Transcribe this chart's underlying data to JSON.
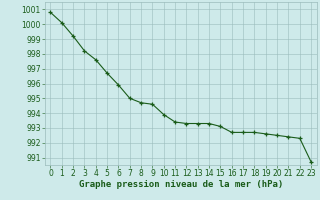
{
  "x": [
    0,
    1,
    2,
    3,
    4,
    5,
    6,
    7,
    8,
    9,
    10,
    11,
    12,
    13,
    14,
    15,
    16,
    17,
    18,
    19,
    20,
    21,
    22,
    23
  ],
  "y": [
    1000.8,
    1000.1,
    999.2,
    998.2,
    997.6,
    996.7,
    995.9,
    995.0,
    994.7,
    994.6,
    993.9,
    993.4,
    993.3,
    993.3,
    993.3,
    993.1,
    992.7,
    992.7,
    992.7,
    992.6,
    992.5,
    992.4,
    992.3,
    990.7
  ],
  "line_color": "#1a5c1a",
  "marker_color": "#1a5c1a",
  "bg_color": "#ceeaea",
  "grid_color": "#9bbcbc",
  "xlabel": "Graphe pression niveau de la mer (hPa)",
  "xlabel_color": "#1a5c1a",
  "ylim": [
    990.5,
    1001.5
  ],
  "yticks": [
    991,
    992,
    993,
    994,
    995,
    996,
    997,
    998,
    999,
    1000,
    1001
  ],
  "xticks": [
    0,
    1,
    2,
    3,
    4,
    5,
    6,
    7,
    8,
    9,
    10,
    11,
    12,
    13,
    14,
    15,
    16,
    17,
    18,
    19,
    20,
    21,
    22,
    23
  ],
  "tick_label_color": "#1a5c1a",
  "xlabel_fontsize": 6.5,
  "tick_fontsize": 5.5
}
